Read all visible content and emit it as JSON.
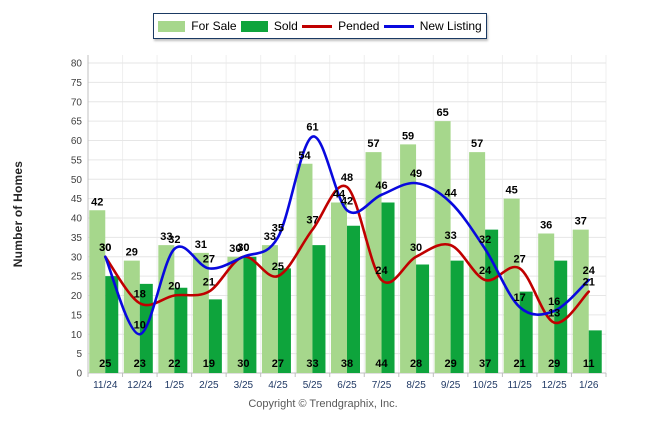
{
  "page": {
    "copyright": "Copyright © Trendgraphix, Inc."
  },
  "y_axis": {
    "title": "Number of Homes",
    "min": 0,
    "max": 80,
    "tick_step": 5
  },
  "chart_data": {
    "type": "bar",
    "subtype": "bar-line-combo",
    "title": "",
    "xlabel": "",
    "ylabel": "Number of Homes",
    "ylim": [
      0,
      80
    ],
    "ytick_step": 5,
    "grid": true,
    "legend_position": "top",
    "categories": [
      "11/24",
      "12/24",
      "1/25",
      "2/25",
      "3/25",
      "4/25",
      "5/25",
      "6/25",
      "7/25",
      "8/25",
      "9/25",
      "10/25",
      "11/25",
      "12/25",
      "1/26"
    ],
    "series": [
      {
        "name": "For Sale",
        "kind": "bar",
        "color": "#a6d78c",
        "values": [
          42,
          29,
          33,
          31,
          30,
          33,
          54,
          44,
          57,
          59,
          65,
          57,
          45,
          36,
          37
        ]
      },
      {
        "name": "Sold",
        "kind": "bar",
        "color": "#0ea43c",
        "values": [
          25,
          23,
          22,
          19,
          30,
          27,
          33,
          38,
          44,
          28,
          29,
          37,
          21,
          29,
          11
        ]
      },
      {
        "name": "Pended",
        "kind": "line",
        "color": "#c00000",
        "values": [
          30,
          18,
          20,
          21,
          30,
          25,
          37,
          48,
          24,
          30,
          33,
          24,
          27,
          13,
          21
        ]
      },
      {
        "name": "New Listing",
        "kind": "line",
        "color": "#0909de",
        "values": [
          30,
          10,
          32,
          27,
          30,
          35,
          61,
          42,
          46,
          49,
          44,
          32,
          17,
          16,
          24
        ]
      }
    ]
  },
  "colors": {
    "for_sale": "#a6d78c",
    "sold": "#0ea43c",
    "pended": "#c00000",
    "new_listing": "#0909de",
    "grid_horizontal": "#e6e6e6",
    "grid_vertical": "#efefef",
    "axis": "#c0c0c0",
    "y_tick_text": "#404040",
    "x_tick_text": "#1f3864",
    "data_label": "#000000"
  }
}
